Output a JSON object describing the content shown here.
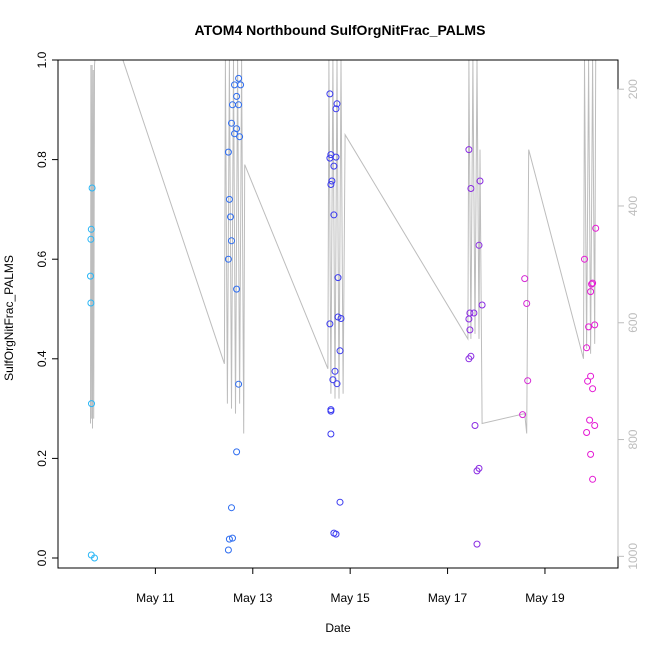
{
  "chart_data": {
    "type": "scatter",
    "title": "ATOM4 Northbound SulfOrgNitFrac_PALMS",
    "xlabel": "Date",
    "ylabel": "SulfOrgNitFrac_PALMS",
    "xlim": [
      "2018-05-09 00:00",
      "2018-05-20 12:00"
    ],
    "ylim": [
      0,
      1.0
    ],
    "y_ticks": [
      "0.0",
      "0.2",
      "0.4",
      "0.6",
      "0.8",
      "1.0"
    ],
    "x_ticks": [
      {
        "date": "2018-05-11",
        "label": "May 11"
      },
      {
        "date": "2018-05-13",
        "label": "May 13"
      },
      {
        "date": "2018-05-15",
        "label": "May 15"
      },
      {
        "date": "2018-05-17",
        "label": "May 17"
      },
      {
        "date": "2018-05-19",
        "label": "May 19"
      }
    ],
    "right_axis": {
      "ticks": [
        "200",
        "400",
        "600",
        "800",
        "1000"
      ],
      "range_top_to_bottom": [
        150,
        1020
      ],
      "color": "#bdbdbd"
    },
    "gray_line": {
      "color": "#bdbdbd",
      "points": [
        [
          "2018-05-09 16:00",
          0.27
        ],
        [
          "2018-05-09 16:12",
          0.99
        ],
        [
          "2018-05-09 16:24",
          0.28
        ],
        [
          "2018-05-09 16:48",
          0.99
        ],
        [
          "2018-05-09 17:00",
          0.26
        ],
        [
          "2018-05-09 17:24",
          0.98
        ],
        [
          "2018-05-09 17:36",
          0.28
        ],
        [
          "2018-05-09 18:00",
          0.99
        ],
        [
          "2018-05-09 18:12",
          1.0
        ],
        [
          "2018-05-10 08:00",
          1.0
        ],
        [
          "2018-05-12 10:00",
          0.39
        ],
        [
          "2018-05-12 10:30",
          1.0
        ],
        [
          "2018-05-12 11:30",
          0.31
        ],
        [
          "2018-05-12 12:30",
          1.0
        ],
        [
          "2018-05-12 13:30",
          0.3
        ],
        [
          "2018-05-12 14:30",
          1.0
        ],
        [
          "2018-05-12 15:30",
          0.29
        ],
        [
          "2018-05-12 16:30",
          1.0
        ],
        [
          "2018-05-12 17:30",
          0.31
        ],
        [
          "2018-05-12 18:30",
          1.0
        ],
        [
          "2018-05-12 19:30",
          0.25
        ],
        [
          "2018-05-12 20:00",
          0.79
        ],
        [
          "2018-05-14 13:00",
          0.38
        ],
        [
          "2018-05-14 13:30",
          1.0
        ],
        [
          "2018-05-14 14:30",
          0.33
        ],
        [
          "2018-05-14 15:30",
          1.0
        ],
        [
          "2018-05-14 16:30",
          0.32
        ],
        [
          "2018-05-14 17:30",
          1.0
        ],
        [
          "2018-05-14 18:30",
          0.32
        ],
        [
          "2018-05-14 19:30",
          1.0
        ],
        [
          "2018-05-14 20:30",
          0.33
        ],
        [
          "2018-05-14 21:30",
          0.85
        ],
        [
          "2018-05-17 10:00",
          0.44
        ],
        [
          "2018-05-17 10:30",
          1.0
        ],
        [
          "2018-05-17 11:30",
          0.44
        ],
        [
          "2018-05-17 12:30",
          1.0
        ],
        [
          "2018-05-17 13:30",
          0.45
        ],
        [
          "2018-05-17 14:30",
          1.0
        ],
        [
          "2018-05-17 15:30",
          0.44
        ],
        [
          "2018-05-17 16:00",
          0.82
        ],
        [
          "2018-05-17 17:00",
          0.27
        ],
        [
          "2018-05-18 14:00",
          0.29
        ],
        [
          "2018-05-18 15:00",
          0.25
        ],
        [
          "2018-05-18 16:00",
          0.82
        ],
        [
          "2018-05-19 19:00",
          0.4
        ],
        [
          "2018-05-19 19:30",
          1.0
        ],
        [
          "2018-05-19 20:30",
          0.42
        ],
        [
          "2018-05-19 21:30",
          1.0
        ],
        [
          "2018-05-19 22:30",
          0.41
        ],
        [
          "2018-05-19 23:30",
          1.0
        ],
        [
          "2018-05-20 00:30",
          0.43
        ],
        [
          "2018-05-20 01:00",
          1.0
        ]
      ]
    },
    "points": [
      {
        "t": "2018-05-09 16:48",
        "y": 0.743,
        "color": "#29b6f6"
      },
      {
        "t": "2018-05-09 16:24",
        "y": 0.66,
        "color": "#29b6f6"
      },
      {
        "t": "2018-05-09 16:12",
        "y": 0.64,
        "color": "#29b6f6"
      },
      {
        "t": "2018-05-09 16:00",
        "y": 0.566,
        "color": "#29b6f6"
      },
      {
        "t": "2018-05-09 16:12",
        "y": 0.512,
        "color": "#29b6f6"
      },
      {
        "t": "2018-05-09 16:30",
        "y": 0.31,
        "color": "#29b6f6"
      },
      {
        "t": "2018-05-09 16:24",
        "y": 0.006,
        "color": "#29b6f6"
      },
      {
        "t": "2018-05-09 18:00",
        "y": 0.0,
        "color": "#29b6f6"
      },
      {
        "t": "2018-05-12 12:00",
        "y": 0.815,
        "color": "#2e6df0"
      },
      {
        "t": "2018-05-12 12:30",
        "y": 0.72,
        "color": "#2e6df0"
      },
      {
        "t": "2018-05-12 13:00",
        "y": 0.685,
        "color": "#2e6df0"
      },
      {
        "t": "2018-05-12 13:30",
        "y": 0.637,
        "color": "#2e6df0"
      },
      {
        "t": "2018-05-12 12:00",
        "y": 0.6,
        "color": "#2e6df0"
      },
      {
        "t": "2018-05-12 13:30",
        "y": 0.873,
        "color": "#2e6df0"
      },
      {
        "t": "2018-05-12 14:00",
        "y": 0.91,
        "color": "#2e6df0"
      },
      {
        "t": "2018-05-12 15:00",
        "y": 0.852,
        "color": "#2e6df0"
      },
      {
        "t": "2018-05-12 16:00",
        "y": 0.862,
        "color": "#2e6df0"
      },
      {
        "t": "2018-05-12 15:00",
        "y": 0.95,
        "color": "#2e6df0"
      },
      {
        "t": "2018-05-12 16:00",
        "y": 0.927,
        "color": "#2e6df0"
      },
      {
        "t": "2018-05-12 17:00",
        "y": 0.91,
        "color": "#2e6df0"
      },
      {
        "t": "2018-05-12 17:00",
        "y": 0.963,
        "color": "#2e6df0"
      },
      {
        "t": "2018-05-12 18:00",
        "y": 0.95,
        "color": "#2e6df0"
      },
      {
        "t": "2018-05-12 17:30",
        "y": 0.846,
        "color": "#2e6df0"
      },
      {
        "t": "2018-05-12 16:00",
        "y": 0.54,
        "color": "#2e6df0"
      },
      {
        "t": "2018-05-12 17:00",
        "y": 0.349,
        "color": "#2e6df0"
      },
      {
        "t": "2018-05-12 16:00",
        "y": 0.213,
        "color": "#2e6df0"
      },
      {
        "t": "2018-05-12 13:30",
        "y": 0.101,
        "color": "#2e6df0"
      },
      {
        "t": "2018-05-12 14:00",
        "y": 0.04,
        "color": "#2e6df0"
      },
      {
        "t": "2018-05-12 12:30",
        "y": 0.038,
        "color": "#2e6df0"
      },
      {
        "t": "2018-05-12 12:00",
        "y": 0.016,
        "color": "#2e6df0"
      },
      {
        "t": "2018-05-14 14:00",
        "y": 0.932,
        "color": "#3b3bf0"
      },
      {
        "t": "2018-05-14 17:30",
        "y": 0.912,
        "color": "#3b3bf0"
      },
      {
        "t": "2018-05-14 17:00",
        "y": 0.902,
        "color": "#3b3bf0"
      },
      {
        "t": "2018-05-14 14:30",
        "y": 0.81,
        "color": "#3b3bf0"
      },
      {
        "t": "2018-05-14 14:00",
        "y": 0.803,
        "color": "#3b3bf0"
      },
      {
        "t": "2018-05-14 17:00",
        "y": 0.805,
        "color": "#3b3bf0"
      },
      {
        "t": "2018-05-14 16:00",
        "y": 0.787,
        "color": "#3b3bf0"
      },
      {
        "t": "2018-05-14 15:00",
        "y": 0.757,
        "color": "#3b3bf0"
      },
      {
        "t": "2018-05-14 14:30",
        "y": 0.75,
        "color": "#3b3bf0"
      },
      {
        "t": "2018-05-14 16:00",
        "y": 0.689,
        "color": "#3b3bf0"
      },
      {
        "t": "2018-05-14 18:00",
        "y": 0.563,
        "color": "#3b3bf0"
      },
      {
        "t": "2018-05-14 18:00",
        "y": 0.484,
        "color": "#3b3bf0"
      },
      {
        "t": "2018-05-14 19:30",
        "y": 0.481,
        "color": "#3b3bf0"
      },
      {
        "t": "2018-05-14 14:00",
        "y": 0.47,
        "color": "#3b3bf0"
      },
      {
        "t": "2018-05-14 19:00",
        "y": 0.416,
        "color": "#3b3bf0"
      },
      {
        "t": "2018-05-14 16:30",
        "y": 0.375,
        "color": "#3b3bf0"
      },
      {
        "t": "2018-05-14 15:30",
        "y": 0.358,
        "color": "#3b3bf0"
      },
      {
        "t": "2018-05-14 17:30",
        "y": 0.35,
        "color": "#3b3bf0"
      },
      {
        "t": "2018-05-14 14:30",
        "y": 0.298,
        "color": "#3b3bf0"
      },
      {
        "t": "2018-05-14 14:30",
        "y": 0.295,
        "color": "#3b3bf0"
      },
      {
        "t": "2018-05-14 14:30",
        "y": 0.249,
        "color": "#3b3bf0"
      },
      {
        "t": "2018-05-14 19:00",
        "y": 0.112,
        "color": "#3b3bf0"
      },
      {
        "t": "2018-05-14 16:00",
        "y": 0.05,
        "color": "#3b3bf0"
      },
      {
        "t": "2018-05-14 17:00",
        "y": 0.048,
        "color": "#3b3bf0"
      },
      {
        "t": "2018-05-17 10:30",
        "y": 0.82,
        "color": "#8a2be2"
      },
      {
        "t": "2018-05-17 11:30",
        "y": 0.742,
        "color": "#8a2be2"
      },
      {
        "t": "2018-05-17 16:00",
        "y": 0.757,
        "color": "#8a2be2"
      },
      {
        "t": "2018-05-17 15:30",
        "y": 0.628,
        "color": "#8a2be2"
      },
      {
        "t": "2018-05-17 17:00",
        "y": 0.508,
        "color": "#8a2be2"
      },
      {
        "t": "2018-05-17 11:00",
        "y": 0.492,
        "color": "#8a2be2"
      },
      {
        "t": "2018-05-17 13:00",
        "y": 0.492,
        "color": "#8a2be2"
      },
      {
        "t": "2018-05-17 10:30",
        "y": 0.48,
        "color": "#8a2be2"
      },
      {
        "t": "2018-05-17 11:00",
        "y": 0.458,
        "color": "#8a2be2"
      },
      {
        "t": "2018-05-17 11:30",
        "y": 0.405,
        "color": "#8a2be2"
      },
      {
        "t": "2018-05-17 10:30",
        "y": 0.4,
        "color": "#8a2be2"
      },
      {
        "t": "2018-05-17 13:30",
        "y": 0.266,
        "color": "#8a2be2"
      },
      {
        "t": "2018-05-17 15:30",
        "y": 0.18,
        "color": "#8a2be2"
      },
      {
        "t": "2018-05-17 14:30",
        "y": 0.175,
        "color": "#8a2be2"
      },
      {
        "t": "2018-05-17 14:30",
        "y": 0.028,
        "color": "#8a2be2"
      },
      {
        "t": "2018-05-18 14:00",
        "y": 0.561,
        "color": "#d52bd5"
      },
      {
        "t": "2018-05-18 15:00",
        "y": 0.511,
        "color": "#d52bd5"
      },
      {
        "t": "2018-05-18 15:30",
        "y": 0.356,
        "color": "#d52bd5"
      },
      {
        "t": "2018-05-18 13:00",
        "y": 0.288,
        "color": "#d52bd5"
      },
      {
        "t": "2018-05-20 01:00",
        "y": 0.662,
        "color": "#e41ad4"
      },
      {
        "t": "2018-05-19 19:30",
        "y": 0.6,
        "color": "#e41ad4"
      },
      {
        "t": "2018-05-19 23:30",
        "y": 0.552,
        "color": "#e41ad4"
      },
      {
        "t": "2018-05-19 23:00",
        "y": 0.55,
        "color": "#e41ad4"
      },
      {
        "t": "2018-05-19 22:30",
        "y": 0.535,
        "color": "#e41ad4"
      },
      {
        "t": "2018-05-20 00:30",
        "y": 0.468,
        "color": "#e41ad4"
      },
      {
        "t": "2018-05-19 21:30",
        "y": 0.464,
        "color": "#e41ad4"
      },
      {
        "t": "2018-05-19 20:30",
        "y": 0.422,
        "color": "#e41ad4"
      },
      {
        "t": "2018-05-19 22:30",
        "y": 0.365,
        "color": "#e41ad4"
      },
      {
        "t": "2018-05-19 21:00",
        "y": 0.355,
        "color": "#e41ad4"
      },
      {
        "t": "2018-05-19 23:30",
        "y": 0.34,
        "color": "#e41ad4"
      },
      {
        "t": "2018-05-19 22:00",
        "y": 0.277,
        "color": "#e41ad4"
      },
      {
        "t": "2018-05-20 00:30",
        "y": 0.266,
        "color": "#e41ad4"
      },
      {
        "t": "2018-05-19 20:30",
        "y": 0.252,
        "color": "#e41ad4"
      },
      {
        "t": "2018-05-19 22:30",
        "y": 0.208,
        "color": "#e41ad4"
      },
      {
        "t": "2018-05-19 23:30",
        "y": 0.158,
        "color": "#e41ad4"
      }
    ]
  }
}
